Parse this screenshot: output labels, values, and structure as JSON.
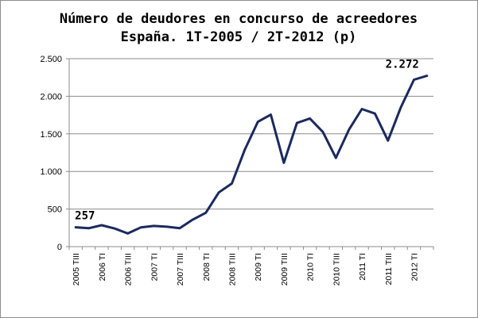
{
  "chart_data": {
    "type": "line",
    "title_line1": "Número de deudores en concurso de acreedores",
    "title_line2": "España. 1T-2005 / 2T-2012 (p)",
    "xlabel": "",
    "ylabel": "",
    "ylim": [
      0,
      2500
    ],
    "yticks": [
      0,
      500,
      1000,
      1500,
      2000,
      2500
    ],
    "ytick_labels": [
      "0",
      "500",
      "1.000",
      "1.500",
      "2.000",
      "2.500"
    ],
    "xtick_labels": [
      "2005 TIII",
      "2006 TI",
      "2006 TIII",
      "2007 TI",
      "2007 TIII",
      "2008 TI",
      "2008 TIII",
      "2009 TI",
      "2009 TIII",
      "2010 TI",
      "2010 TIII",
      "2011 TI",
      "2011 TIII",
      "2012 TI"
    ],
    "line_color": "#1b2a5e",
    "grid": "horizontal",
    "series": [
      {
        "values": [
          257,
          245,
          285,
          240,
          175,
          255,
          275,
          265,
          245,
          360,
          450,
          720,
          840,
          1290,
          1660,
          1755,
          1115,
          1645,
          1705,
          1525,
          1180,
          1555,
          1830,
          1770,
          1410,
          1855,
          2220,
          2272
        ]
      }
    ],
    "data_labels": [
      {
        "index": 0,
        "text": "257"
      },
      {
        "index": 27,
        "text": "2.272"
      }
    ]
  }
}
